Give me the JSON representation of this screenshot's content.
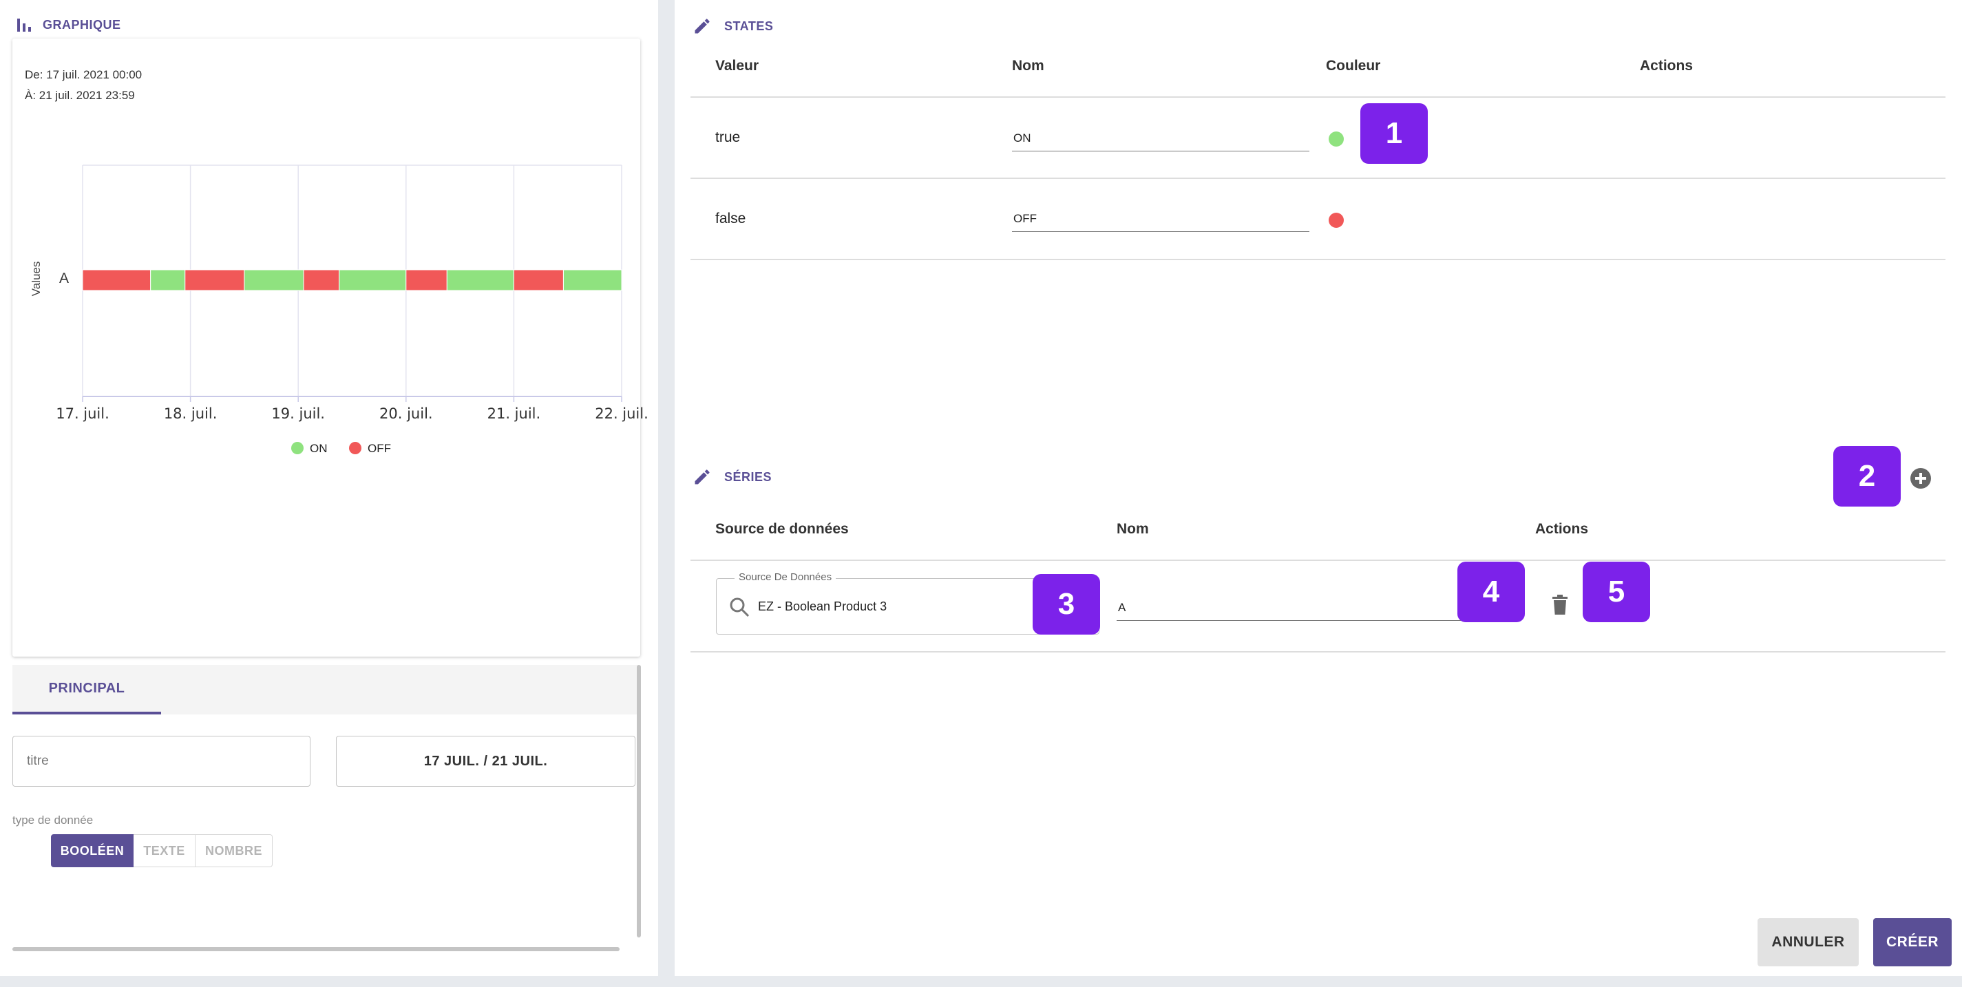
{
  "graph_section": {
    "title": "GRAPHIQUE",
    "range_from": "De: 17 juil. 2021 00:00",
    "range_to": "À: 21 juil. 2021 23:59"
  },
  "chart_data": {
    "type": "bar",
    "ylabel": "Values",
    "y_categories": [
      "A"
    ],
    "x_tick_labels": [
      "17. juil.",
      "18. juil.",
      "19. juil.",
      "20. juil.",
      "21. juil.",
      "22. juil."
    ],
    "x_range_days": [
      0,
      5
    ],
    "legend": [
      {
        "name": "ON",
        "color": "#8fe27f"
      },
      {
        "name": "OFF",
        "color": "#f15858"
      }
    ],
    "segments": [
      {
        "state": "OFF",
        "start": 0.0,
        "end": 0.63
      },
      {
        "state": "ON",
        "start": 0.63,
        "end": 0.95
      },
      {
        "state": "OFF",
        "start": 0.95,
        "end": 1.5
      },
      {
        "state": "ON",
        "start": 1.5,
        "end": 2.05
      },
      {
        "state": "OFF",
        "start": 2.05,
        "end": 2.38
      },
      {
        "state": "ON",
        "start": 2.38,
        "end": 3.0
      },
      {
        "state": "OFF",
        "start": 3.0,
        "end": 3.38
      },
      {
        "state": "ON",
        "start": 3.38,
        "end": 4.0
      },
      {
        "state": "OFF",
        "start": 4.0,
        "end": 4.46
      },
      {
        "state": "ON",
        "start": 4.46,
        "end": 5.0
      }
    ],
    "grid": true
  },
  "tabs": [
    {
      "label": "PRINCIPAL"
    }
  ],
  "form": {
    "title_placeholder": "titre",
    "date_range_label": "17 JUIL. / 21 JUIL.",
    "datatype_label": "type de donnée",
    "datatype_options": [
      "BOOLÉEN",
      "TEXTE",
      "NOMBRE"
    ],
    "datatype_selected": "BOOLÉEN"
  },
  "states_section": {
    "title": "STATES",
    "headers": [
      "Valeur",
      "Nom",
      "Couleur",
      "Actions"
    ],
    "rows": [
      {
        "value": "true",
        "name": "ON",
        "color": "#8fe27f"
      },
      {
        "value": "false",
        "name": "OFF",
        "color": "#f15858"
      }
    ]
  },
  "series_section": {
    "title": "SÉRIES",
    "headers": [
      "Source de données",
      "Nom",
      "Actions"
    ],
    "rows": [
      {
        "source_label": "Source De Données",
        "source_value": "EZ - Boolean Product 3",
        "name": "A"
      }
    ]
  },
  "badges": [
    "1",
    "2",
    "3",
    "4",
    "5"
  ],
  "footer": {
    "cancel_label": "ANNULER",
    "create_label": "CRÉER"
  },
  "colors": {
    "accent": "#5a4f96",
    "badge": "#7c22ea",
    "on": "#8fe27f",
    "off": "#f15858"
  }
}
